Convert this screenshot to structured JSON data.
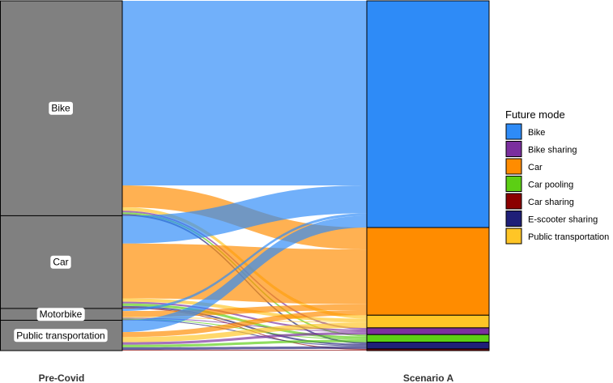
{
  "chart_data": {
    "type": "alluvial",
    "axes": [
      "Pre-Covid",
      "Scenario A"
    ],
    "legend": {
      "title": "Future mode",
      "placement": "right",
      "entries": [
        {
          "name": "Bike",
          "color": "#2E8BF7"
        },
        {
          "name": "Bike sharing",
          "color": "#7B2F9E"
        },
        {
          "name": "Car",
          "color": "#FF8C00"
        },
        {
          "name": "Car pooling",
          "color": "#5CCF14"
        },
        {
          "name": "Car sharing",
          "color": "#8B0000"
        },
        {
          "name": "E-scooter sharing",
          "color": "#1F1F78"
        },
        {
          "name": "Public transportation",
          "color": "#FFC526"
        }
      ]
    },
    "left_strata": [
      "Bike",
      "Car",
      "Motorbike",
      "Public transportation"
    ],
    "right_strata_order": [
      "Bike",
      "Car",
      "Public transportation",
      "Bike sharing",
      "Car pooling",
      "E-scooter sharing",
      "Car sharing"
    ],
    "flows": [
      {
        "from": "Bike",
        "to": "Bike",
        "value": 219
      },
      {
        "from": "Bike",
        "to": "Car",
        "value": 26
      },
      {
        "from": "Bike",
        "to": "Public transportation",
        "value": 4
      },
      {
        "from": "Bike",
        "to": "Bike sharing",
        "value": 2
      },
      {
        "from": "Bike",
        "to": "Car pooling",
        "value": 2
      },
      {
        "from": "Bike",
        "to": "E-scooter sharing",
        "value": 2
      },
      {
        "from": "Car",
        "to": "Bike",
        "value": 33
      },
      {
        "from": "Car",
        "to": "Car",
        "value": 65
      },
      {
        "from": "Car",
        "to": "Public transportation",
        "value": 4
      },
      {
        "from": "Car",
        "to": "Bike sharing",
        "value": 2
      },
      {
        "from": "Car",
        "to": "Car pooling",
        "value": 3
      },
      {
        "from": "Car",
        "to": "E-scooter sharing",
        "value": 2
      },
      {
        "from": "Car",
        "to": "Car sharing",
        "value": 1
      },
      {
        "from": "Motorbike",
        "to": "Bike",
        "value": 3
      },
      {
        "from": "Motorbike",
        "to": "Car",
        "value": 7
      },
      {
        "from": "Motorbike",
        "to": "Public transportation",
        "value": 1
      },
      {
        "from": "Motorbike",
        "to": "Bike sharing",
        "value": 1
      },
      {
        "from": "Motorbike",
        "to": "Car pooling",
        "value": 1
      },
      {
        "from": "Motorbike",
        "to": "E-scooter sharing",
        "value": 1
      },
      {
        "from": "Public transportation",
        "to": "Bike",
        "value": 14
      },
      {
        "from": "Public transportation",
        "to": "Car",
        "value": 6
      },
      {
        "from": "Public transportation",
        "to": "Public transportation",
        "value": 6
      },
      {
        "from": "Public transportation",
        "to": "Bike sharing",
        "value": 3
      },
      {
        "from": "Public transportation",
        "to": "Car pooling",
        "value": 3
      },
      {
        "from": "Public transportation",
        "to": "E-scooter sharing",
        "value": 3
      },
      {
        "from": "Public transportation",
        "to": "Car sharing",
        "value": 1
      }
    ],
    "stratum_fill": "#808080"
  }
}
